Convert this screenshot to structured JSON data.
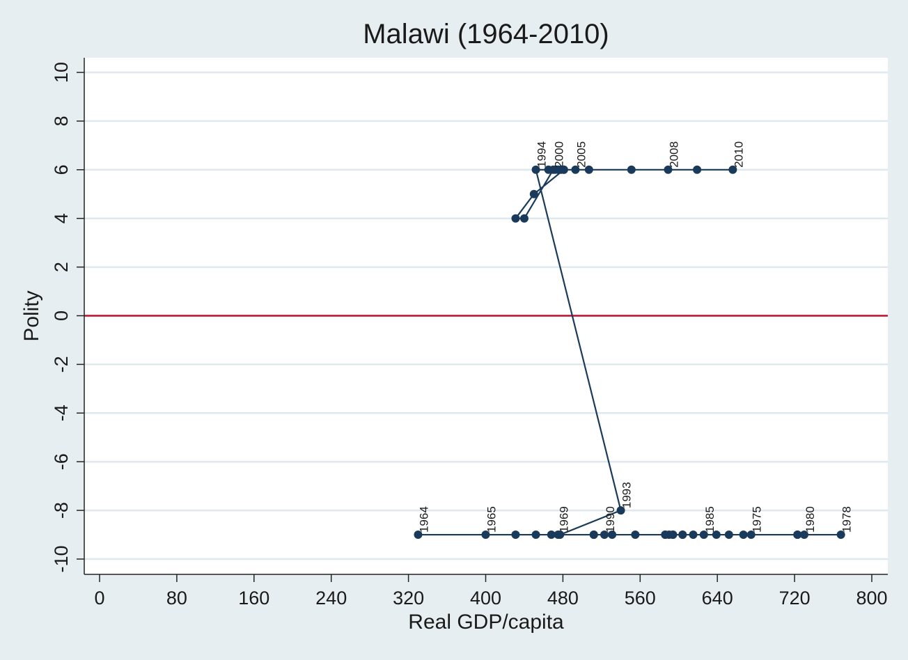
{
  "chart_data": {
    "type": "scatter",
    "title": "Malawi (1964-2010)",
    "xlabel": "Real GDP/capita",
    "ylabel": "Polity",
    "xlim": [
      0,
      800
    ],
    "ylim": [
      -10,
      10
    ],
    "xticks": [
      0,
      80,
      160,
      240,
      320,
      400,
      480,
      560,
      640,
      720,
      800
    ],
    "yticks": [
      -10,
      -8,
      -6,
      -4,
      -2,
      0,
      2,
      4,
      6,
      8,
      10
    ],
    "grid": true,
    "reference_line": {
      "y": 0,
      "color": "#c0102e"
    },
    "marker_color": "#1a3a5c",
    "connected": true,
    "points": [
      {
        "year": 1964,
        "x": 330,
        "y": -9,
        "label": "1964"
      },
      {
        "year": 1965,
        "x": 400,
        "y": -9,
        "label": "1965"
      },
      {
        "year": 1966,
        "x": 431,
        "y": -9
      },
      {
        "year": 1967,
        "x": 452,
        "y": -9
      },
      {
        "year": 1968,
        "x": 468,
        "y": -9
      },
      {
        "year": 1969,
        "x": 475,
        "y": -9,
        "label": "1969"
      },
      {
        "year": 1970,
        "x": 512,
        "y": -9
      },
      {
        "year": 1971,
        "x": 555,
        "y": -9
      },
      {
        "year": 1972,
        "x": 586,
        "y": -9
      },
      {
        "year": 1973,
        "x": 604,
        "y": -9
      },
      {
        "year": 1974,
        "x": 639,
        "y": -9
      },
      {
        "year": 1975,
        "x": 675,
        "y": -9,
        "label": "1975"
      },
      {
        "year": 1976,
        "x": 667,
        "y": -9
      },
      {
        "year": 1977,
        "x": 723,
        "y": -9
      },
      {
        "year": 1978,
        "x": 768,
        "y": -9,
        "label": "1978"
      },
      {
        "year": 1979,
        "x": 723,
        "y": -9
      },
      {
        "year": 1980,
        "x": 730,
        "y": -9,
        "label": "1980"
      },
      {
        "year": 1981,
        "x": 652,
        "y": -9
      },
      {
        "year": 1982,
        "x": 615,
        "y": -9
      },
      {
        "year": 1983,
        "x": 594,
        "y": -9
      },
      {
        "year": 1984,
        "x": 590,
        "y": -9
      },
      {
        "year": 1985,
        "x": 626,
        "y": -9,
        "label": "1985"
      },
      {
        "year": 1986,
        "x": 604,
        "y": -9
      },
      {
        "year": 1987,
        "x": 586,
        "y": -9
      },
      {
        "year": 1988,
        "x": 594,
        "y": -9
      },
      {
        "year": 1989,
        "x": 531,
        "y": -9
      },
      {
        "year": 1990,
        "x": 523,
        "y": -9,
        "label": "1990"
      },
      {
        "year": 1991,
        "x": 512,
        "y": -9
      },
      {
        "year": 1992,
        "x": 477,
        "y": -9
      },
      {
        "year": 1993,
        "x": 540,
        "y": -8,
        "label": "1993"
      },
      {
        "year": 1994,
        "x": 452,
        "y": 6,
        "label": "1994"
      },
      {
        "year": 1995,
        "x": 465,
        "y": 6
      },
      {
        "year": 1996,
        "x": 475,
        "y": 6
      },
      {
        "year": 1997,
        "x": 481,
        "y": 6
      },
      {
        "year": 1998,
        "x": 478,
        "y": 6
      },
      {
        "year": 1999,
        "x": 472,
        "y": 6
      },
      {
        "year": 2000,
        "x": 470,
        "y": 6,
        "label": "2000"
      },
      {
        "year": 2001,
        "x": 440,
        "y": 4
      },
      {
        "year": 2002,
        "x": 431,
        "y": 4
      },
      {
        "year": 2003,
        "x": 450,
        "y": 5
      },
      {
        "year": 2004,
        "x": 481,
        "y": 6
      },
      {
        "year": 2005,
        "x": 493,
        "y": 6,
        "label": "2005"
      },
      {
        "year": 2006,
        "x": 507,
        "y": 6
      },
      {
        "year": 2007,
        "x": 551,
        "y": 6
      },
      {
        "year": 2008,
        "x": 589,
        "y": 6,
        "label": "2008"
      },
      {
        "year": 2009,
        "x": 619,
        "y": 6
      },
      {
        "year": 2010,
        "x": 656,
        "y": 6,
        "label": "2010"
      }
    ]
  }
}
